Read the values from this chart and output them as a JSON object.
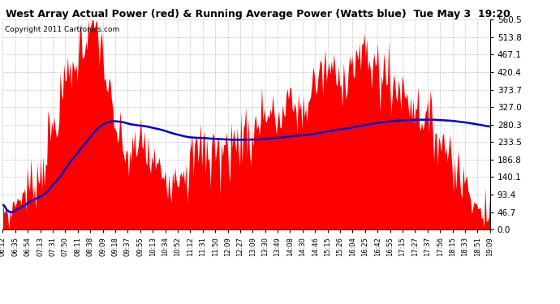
{
  "title": "West Array Actual Power (red) & Running Average Power (Watts blue)  Tue May 3  19:20",
  "copyright": "Copyright 2011 Cartronics.com",
  "ymax": 560.5,
  "ymin": 0.0,
  "yticks": [
    0.0,
    46.7,
    93.4,
    140.1,
    186.8,
    233.5,
    280.3,
    327.0,
    373.7,
    420.4,
    467.1,
    513.8,
    560.5
  ],
  "bg_color": "#ffffff",
  "plot_bg_color": "#ffffff",
  "grid_color": "#aaaaaa",
  "fill_color": "#ff0000",
  "line_color": "#0000cc",
  "x_labels": [
    "06:12",
    "06:35",
    "06:54",
    "07:13",
    "07:31",
    "07:50",
    "08:11",
    "08:38",
    "09:09",
    "09:18",
    "09:37",
    "09:55",
    "10:13",
    "10:34",
    "10:52",
    "11:12",
    "11:31",
    "11:50",
    "12:09",
    "12:27",
    "13:09",
    "13:30",
    "13:49",
    "14:08",
    "14:30",
    "14:46",
    "15:15",
    "15:26",
    "16:04",
    "16:25",
    "16:42",
    "16:55",
    "17:15",
    "17:27",
    "17:37",
    "17:56",
    "18:15",
    "18:33",
    "18:51",
    "19:09"
  ]
}
